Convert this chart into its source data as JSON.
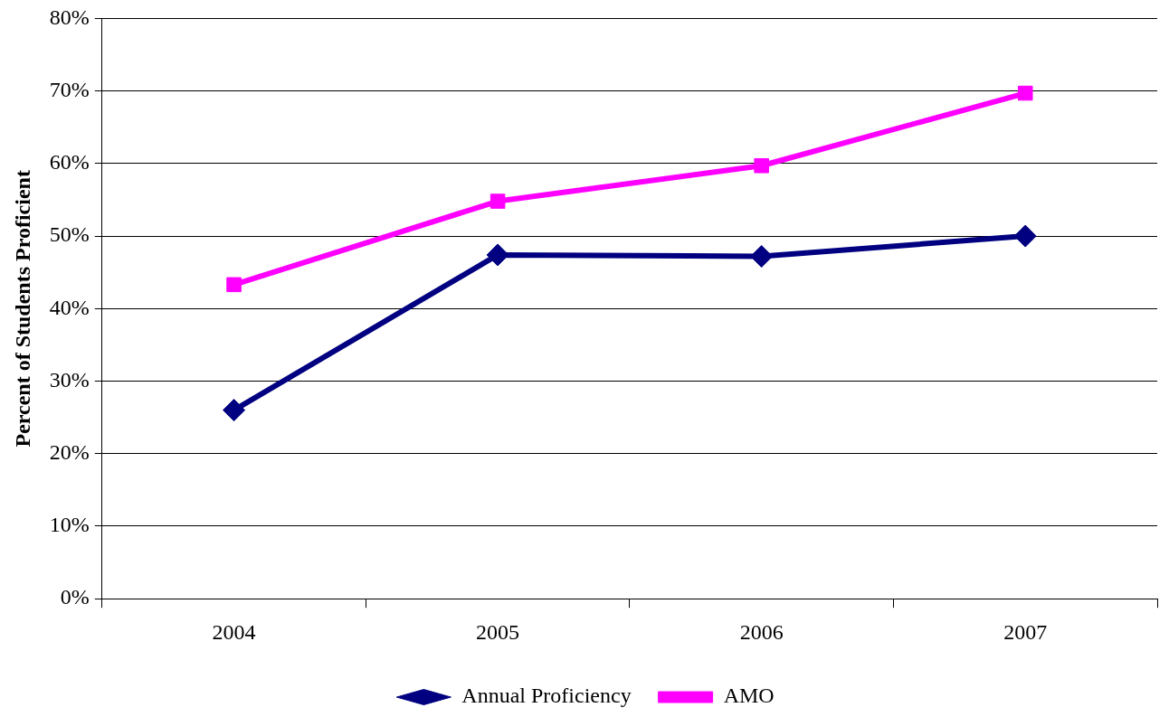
{
  "chart_data": {
    "type": "line",
    "ylabel": "Percent of Students Proficient",
    "categories": [
      "2004",
      "2005",
      "2006",
      "2007"
    ],
    "series": [
      {
        "name": "Annual Proficiency",
        "color": "#000080",
        "values": [
          26,
          47.4,
          47.2,
          50
        ],
        "marker": "diamond"
      },
      {
        "name": "AMO",
        "color": "#ff00ff",
        "values": [
          43.3,
          54.8,
          59.7,
          69.7
        ],
        "marker": "square"
      }
    ],
    "ylim": [
      0,
      80
    ],
    "yticks": [
      {
        "value": 0,
        "label": "0%"
      },
      {
        "value": 10,
        "label": "10%"
      },
      {
        "value": 20,
        "label": "20%"
      },
      {
        "value": 30,
        "label": "30%"
      },
      {
        "value": 40,
        "label": "40%"
      },
      {
        "value": 50,
        "label": "50%"
      },
      {
        "value": 60,
        "label": "60%"
      },
      {
        "value": 70,
        "label": "70%"
      },
      {
        "value": 80,
        "label": "80%"
      }
    ],
    "grid": "y",
    "legend": "bottom",
    "line_style": "solid"
  }
}
